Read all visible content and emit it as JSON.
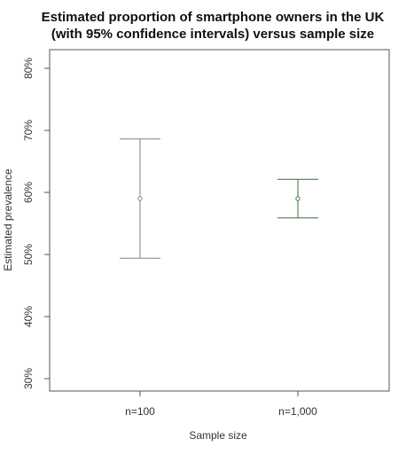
{
  "chart_data": {
    "type": "errorbar",
    "title_line1": "Estimated proportion of smartphone owners in the UK",
    "title_line2": "(with 95% confidence intervals) versus sample size",
    "xlabel": "Sample size",
    "ylabel": "Estimated prevalence",
    "categories": [
      "n=100",
      "n=1,000"
    ],
    "points": [
      {
        "category": "n=100",
        "estimate": 59,
        "lower": 49.4,
        "upper": 68.6
      },
      {
        "category": "n=1,000",
        "estimate": 59,
        "lower": 55.9,
        "upper": 62.1
      }
    ],
    "ylim": [
      28,
      83
    ],
    "yticks": [
      30,
      40,
      50,
      60,
      70,
      80
    ],
    "ytick_labels": [
      "30%",
      "40%",
      "50%",
      "60%",
      "70%",
      "80%"
    ],
    "grid": false,
    "colors": {
      "n=100": "#808080",
      "n=1,000": "#3a6b3a"
    }
  }
}
